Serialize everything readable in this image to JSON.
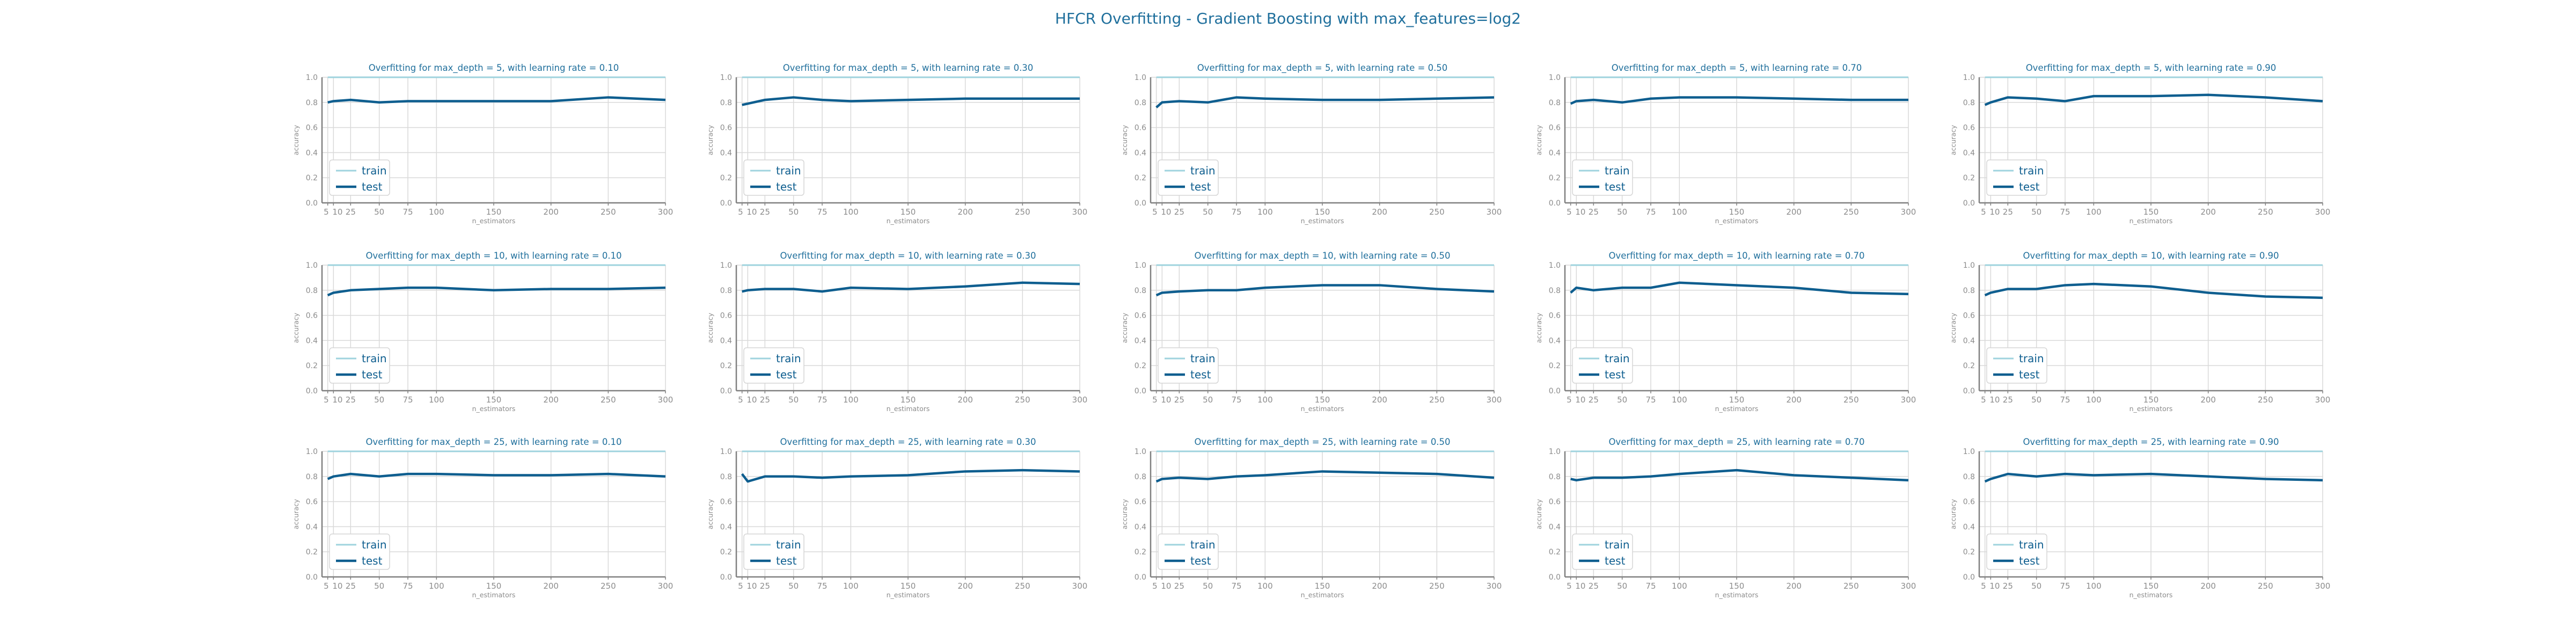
{
  "figure": {
    "title": "HFCR Overfitting - Gradient Boosting with max_features=log2",
    "title_color": "#1f6f9c",
    "train_color": "#9fd3de",
    "test_color": "#0e5e8f",
    "grid_color": "#d9d9d9",
    "tick_color": "#8c8c8c",
    "subplot_title_color": "#1f6f9c"
  },
  "chart_data": [
    {
      "type": "line",
      "title": "Overfitting for max_depth = 5, with learning rate = 0.10",
      "xlabel": "n_estimators",
      "ylabel": "accuracy",
      "x": [
        5,
        10,
        25,
        50,
        75,
        100,
        150,
        200,
        250,
        300
      ],
      "xticks": [
        "5",
        "10",
        "25",
        "50",
        "75",
        "100",
        "150",
        "200",
        "250",
        "300"
      ],
      "ylim": [
        0,
        1
      ],
      "yticks": [
        "0.0",
        "0.2",
        "0.4",
        "0.6",
        "0.8",
        "1.0"
      ],
      "grid": true,
      "legend": "lower left",
      "series": [
        {
          "name": "train",
          "values": [
            1,
            1,
            1,
            1,
            1,
            1,
            1,
            1,
            1,
            1
          ]
        },
        {
          "name": "test",
          "values": [
            0.8,
            0.81,
            0.82,
            0.8,
            0.81,
            0.81,
            0.81,
            0.81,
            0.84,
            0.82
          ]
        }
      ]
    },
    {
      "type": "line",
      "title": "Overfitting for max_depth = 5, with learning rate = 0.30",
      "xlabel": "n_estimators",
      "ylabel": "accuracy",
      "x": [
        5,
        10,
        25,
        50,
        75,
        100,
        150,
        200,
        250,
        300
      ],
      "xticks": [
        "5",
        "10",
        "25",
        "50",
        "75",
        "100",
        "150",
        "200",
        "250",
        "300"
      ],
      "ylim": [
        0,
        1
      ],
      "yticks": [
        "0.0",
        "0.2",
        "0.4",
        "0.6",
        "0.8",
        "1.0"
      ],
      "grid": true,
      "legend": "lower left",
      "series": [
        {
          "name": "train",
          "values": [
            1,
            1,
            1,
            1,
            1,
            1,
            1,
            1,
            1,
            1
          ]
        },
        {
          "name": "test",
          "values": [
            0.78,
            0.79,
            0.82,
            0.84,
            0.82,
            0.81,
            0.82,
            0.83,
            0.83,
            0.83
          ]
        }
      ]
    },
    {
      "type": "line",
      "title": "Overfitting for max_depth = 5, with learning rate = 0.50",
      "xlabel": "n_estimators",
      "ylabel": "accuracy",
      "x": [
        5,
        10,
        25,
        50,
        75,
        100,
        150,
        200,
        250,
        300
      ],
      "xticks": [
        "5",
        "10",
        "25",
        "50",
        "75",
        "100",
        "150",
        "200",
        "250",
        "300"
      ],
      "ylim": [
        0,
        1
      ],
      "yticks": [
        "0.0",
        "0.2",
        "0.4",
        "0.6",
        "0.8",
        "1.0"
      ],
      "grid": true,
      "legend": "lower left",
      "series": [
        {
          "name": "train",
          "values": [
            1,
            1,
            1,
            1,
            1,
            1,
            1,
            1,
            1,
            1
          ]
        },
        {
          "name": "test",
          "values": [
            0.76,
            0.8,
            0.81,
            0.8,
            0.84,
            0.83,
            0.82,
            0.82,
            0.83,
            0.84
          ]
        }
      ]
    },
    {
      "type": "line",
      "title": "Overfitting for max_depth = 5, with learning rate = 0.70",
      "xlabel": "n_estimators",
      "ylabel": "accuracy",
      "x": [
        5,
        10,
        25,
        50,
        75,
        100,
        150,
        200,
        250,
        300
      ],
      "xticks": [
        "5",
        "10",
        "25",
        "50",
        "75",
        "100",
        "150",
        "200",
        "250",
        "300"
      ],
      "ylim": [
        0,
        1
      ],
      "yticks": [
        "0.0",
        "0.2",
        "0.4",
        "0.6",
        "0.8",
        "1.0"
      ],
      "grid": true,
      "legend": "lower left",
      "series": [
        {
          "name": "train",
          "values": [
            1,
            1,
            1,
            1,
            1,
            1,
            1,
            1,
            1,
            1
          ]
        },
        {
          "name": "test",
          "values": [
            0.79,
            0.81,
            0.82,
            0.8,
            0.83,
            0.84,
            0.84,
            0.83,
            0.82,
            0.82
          ]
        }
      ]
    },
    {
      "type": "line",
      "title": "Overfitting for max_depth = 5, with learning rate = 0.90",
      "xlabel": "n_estimators",
      "ylabel": "accuracy",
      "x": [
        5,
        10,
        25,
        50,
        75,
        100,
        150,
        200,
        250,
        300
      ],
      "xticks": [
        "5",
        "10",
        "25",
        "50",
        "75",
        "100",
        "150",
        "200",
        "250",
        "300"
      ],
      "ylim": [
        0,
        1
      ],
      "yticks": [
        "0.0",
        "0.2",
        "0.4",
        "0.6",
        "0.8",
        "1.0"
      ],
      "grid": true,
      "legend": "lower left",
      "series": [
        {
          "name": "train",
          "values": [
            1,
            1,
            1,
            1,
            1,
            1,
            1,
            1,
            1,
            1
          ]
        },
        {
          "name": "test",
          "values": [
            0.78,
            0.8,
            0.84,
            0.83,
            0.81,
            0.85,
            0.85,
            0.86,
            0.84,
            0.81
          ]
        }
      ]
    },
    {
      "type": "line",
      "title": "Overfitting for max_depth = 10, with learning rate = 0.10",
      "xlabel": "n_estimators",
      "ylabel": "accuracy",
      "x": [
        5,
        10,
        25,
        50,
        75,
        100,
        150,
        200,
        250,
        300
      ],
      "xticks": [
        "5",
        "10",
        "25",
        "50",
        "75",
        "100",
        "150",
        "200",
        "250",
        "300"
      ],
      "ylim": [
        0,
        1
      ],
      "yticks": [
        "0.0",
        "0.2",
        "0.4",
        "0.6",
        "0.8",
        "1.0"
      ],
      "grid": true,
      "legend": "lower left",
      "series": [
        {
          "name": "train",
          "values": [
            1,
            1,
            1,
            1,
            1,
            1,
            1,
            1,
            1,
            1
          ]
        },
        {
          "name": "test",
          "values": [
            0.76,
            0.78,
            0.8,
            0.81,
            0.82,
            0.82,
            0.8,
            0.81,
            0.81,
            0.82
          ]
        }
      ]
    },
    {
      "type": "line",
      "title": "Overfitting for max_depth = 10, with learning rate = 0.30",
      "xlabel": "n_estimators",
      "ylabel": "accuracy",
      "x": [
        5,
        10,
        25,
        50,
        75,
        100,
        150,
        200,
        250,
        300
      ],
      "xticks": [
        "5",
        "10",
        "25",
        "50",
        "75",
        "100",
        "150",
        "200",
        "250",
        "300"
      ],
      "ylim": [
        0,
        1
      ],
      "yticks": [
        "0.0",
        "0.2",
        "0.4",
        "0.6",
        "0.8",
        "1.0"
      ],
      "grid": true,
      "legend": "lower left",
      "series": [
        {
          "name": "train",
          "values": [
            1,
            1,
            1,
            1,
            1,
            1,
            1,
            1,
            1,
            1
          ]
        },
        {
          "name": "test",
          "values": [
            0.79,
            0.8,
            0.81,
            0.81,
            0.79,
            0.82,
            0.81,
            0.83,
            0.86,
            0.85
          ]
        }
      ]
    },
    {
      "type": "line",
      "title": "Overfitting for max_depth = 10, with learning rate = 0.50",
      "xlabel": "n_estimators",
      "ylabel": "accuracy",
      "x": [
        5,
        10,
        25,
        50,
        75,
        100,
        150,
        200,
        250,
        300
      ],
      "xticks": [
        "5",
        "10",
        "25",
        "50",
        "75",
        "100",
        "150",
        "200",
        "250",
        "300"
      ],
      "ylim": [
        0,
        1
      ],
      "yticks": [
        "0.0",
        "0.2",
        "0.4",
        "0.6",
        "0.8",
        "1.0"
      ],
      "grid": true,
      "legend": "lower left",
      "series": [
        {
          "name": "train",
          "values": [
            1,
            1,
            1,
            1,
            1,
            1,
            1,
            1,
            1,
            1
          ]
        },
        {
          "name": "test",
          "values": [
            0.76,
            0.78,
            0.79,
            0.8,
            0.8,
            0.82,
            0.84,
            0.84,
            0.81,
            0.79
          ]
        }
      ]
    },
    {
      "type": "line",
      "title": "Overfitting for max_depth = 10, with learning rate = 0.70",
      "xlabel": "n_estimators",
      "ylabel": "accuracy",
      "x": [
        5,
        10,
        25,
        50,
        75,
        100,
        150,
        200,
        250,
        300
      ],
      "xticks": [
        "5",
        "10",
        "25",
        "50",
        "75",
        "100",
        "150",
        "200",
        "250",
        "300"
      ],
      "ylim": [
        0,
        1
      ],
      "yticks": [
        "0.0",
        "0.2",
        "0.4",
        "0.6",
        "0.8",
        "1.0"
      ],
      "grid": true,
      "legend": "lower left",
      "series": [
        {
          "name": "train",
          "values": [
            1,
            1,
            1,
            1,
            1,
            1,
            1,
            1,
            1,
            1
          ]
        },
        {
          "name": "test",
          "values": [
            0.78,
            0.82,
            0.8,
            0.82,
            0.82,
            0.86,
            0.84,
            0.82,
            0.78,
            0.77
          ]
        }
      ]
    },
    {
      "type": "line",
      "title": "Overfitting for max_depth = 10, with learning rate = 0.90",
      "xlabel": "n_estimators",
      "ylabel": "accuracy",
      "x": [
        5,
        10,
        25,
        50,
        75,
        100,
        150,
        200,
        250,
        300
      ],
      "xticks": [
        "5",
        "10",
        "25",
        "50",
        "75",
        "100",
        "150",
        "200",
        "250",
        "300"
      ],
      "ylim": [
        0,
        1
      ],
      "yticks": [
        "0.0",
        "0.2",
        "0.4",
        "0.6",
        "0.8",
        "1.0"
      ],
      "grid": true,
      "legend": "lower left",
      "series": [
        {
          "name": "train",
          "values": [
            1,
            1,
            1,
            1,
            1,
            1,
            1,
            1,
            1,
            1
          ]
        },
        {
          "name": "test",
          "values": [
            0.76,
            0.78,
            0.81,
            0.81,
            0.84,
            0.85,
            0.83,
            0.78,
            0.75,
            0.74
          ]
        }
      ]
    },
    {
      "type": "line",
      "title": "Overfitting for max_depth = 25, with learning rate = 0.10",
      "xlabel": "n_estimators",
      "ylabel": "accuracy",
      "x": [
        5,
        10,
        25,
        50,
        75,
        100,
        150,
        200,
        250,
        300
      ],
      "xticks": [
        "5",
        "10",
        "25",
        "50",
        "75",
        "100",
        "150",
        "200",
        "250",
        "300"
      ],
      "ylim": [
        0,
        1
      ],
      "yticks": [
        "0.0",
        "0.2",
        "0.4",
        "0.6",
        "0.8",
        "1.0"
      ],
      "grid": true,
      "legend": "lower left",
      "series": [
        {
          "name": "train",
          "values": [
            1,
            1,
            1,
            1,
            1,
            1,
            1,
            1,
            1,
            1
          ]
        },
        {
          "name": "test",
          "values": [
            0.78,
            0.8,
            0.82,
            0.8,
            0.82,
            0.82,
            0.81,
            0.81,
            0.82,
            0.8
          ]
        }
      ]
    },
    {
      "type": "line",
      "title": "Overfitting for max_depth = 25, with learning rate = 0.30",
      "xlabel": "n_estimators",
      "ylabel": "accuracy",
      "x": [
        5,
        10,
        25,
        50,
        75,
        100,
        150,
        200,
        250,
        300
      ],
      "xticks": [
        "5",
        "10",
        "25",
        "50",
        "75",
        "100",
        "150",
        "200",
        "250",
        "300"
      ],
      "ylim": [
        0,
        1
      ],
      "yticks": [
        "0.0",
        "0.2",
        "0.4",
        "0.6",
        "0.8",
        "1.0"
      ],
      "grid": true,
      "legend": "lower left",
      "series": [
        {
          "name": "train",
          "values": [
            1,
            1,
            1,
            1,
            1,
            1,
            1,
            1,
            1,
            1
          ]
        },
        {
          "name": "test",
          "values": [
            0.82,
            0.76,
            0.8,
            0.8,
            0.79,
            0.8,
            0.81,
            0.84,
            0.85,
            0.84
          ]
        }
      ]
    },
    {
      "type": "line",
      "title": "Overfitting for max_depth = 25, with learning rate = 0.50",
      "xlabel": "n_estimators",
      "ylabel": "accuracy",
      "x": [
        5,
        10,
        25,
        50,
        75,
        100,
        150,
        200,
        250,
        300
      ],
      "xticks": [
        "5",
        "10",
        "25",
        "50",
        "75",
        "100",
        "150",
        "200",
        "250",
        "300"
      ],
      "ylim": [
        0,
        1
      ],
      "yticks": [
        "0.0",
        "0.2",
        "0.4",
        "0.6",
        "0.8",
        "1.0"
      ],
      "grid": true,
      "legend": "lower left",
      "series": [
        {
          "name": "train",
          "values": [
            1,
            1,
            1,
            1,
            1,
            1,
            1,
            1,
            1,
            1
          ]
        },
        {
          "name": "test",
          "values": [
            0.76,
            0.78,
            0.79,
            0.78,
            0.8,
            0.81,
            0.84,
            0.83,
            0.82,
            0.79
          ]
        }
      ]
    },
    {
      "type": "line",
      "title": "Overfitting for max_depth = 25, with learning rate = 0.70",
      "xlabel": "n_estimators",
      "ylabel": "accuracy",
      "x": [
        5,
        10,
        25,
        50,
        75,
        100,
        150,
        200,
        250,
        300
      ],
      "xticks": [
        "5",
        "10",
        "25",
        "50",
        "75",
        "100",
        "150",
        "200",
        "250",
        "300"
      ],
      "ylim": [
        0,
        1
      ],
      "yticks": [
        "0.0",
        "0.2",
        "0.4",
        "0.6",
        "0.8",
        "1.0"
      ],
      "grid": true,
      "legend": "lower left",
      "series": [
        {
          "name": "train",
          "values": [
            1,
            1,
            1,
            1,
            1,
            1,
            1,
            1,
            1,
            1
          ]
        },
        {
          "name": "test",
          "values": [
            0.78,
            0.77,
            0.79,
            0.79,
            0.8,
            0.82,
            0.85,
            0.81,
            0.79,
            0.77
          ]
        }
      ]
    },
    {
      "type": "line",
      "title": "Overfitting for max_depth = 25, with learning rate = 0.90",
      "xlabel": "n_estimators",
      "ylabel": "accuracy",
      "x": [
        5,
        10,
        25,
        50,
        75,
        100,
        150,
        200,
        250,
        300
      ],
      "xticks": [
        "5",
        "10",
        "25",
        "50",
        "75",
        "100",
        "150",
        "200",
        "250",
        "300"
      ],
      "ylim": [
        0,
        1
      ],
      "yticks": [
        "0.0",
        "0.2",
        "0.4",
        "0.6",
        "0.8",
        "1.0"
      ],
      "grid": true,
      "legend": "lower left",
      "series": [
        {
          "name": "train",
          "values": [
            1,
            1,
            1,
            1,
            1,
            1,
            1,
            1,
            1,
            1
          ]
        },
        {
          "name": "test",
          "values": [
            0.76,
            0.78,
            0.82,
            0.8,
            0.82,
            0.81,
            0.82,
            0.8,
            0.78,
            0.77
          ]
        }
      ]
    }
  ]
}
